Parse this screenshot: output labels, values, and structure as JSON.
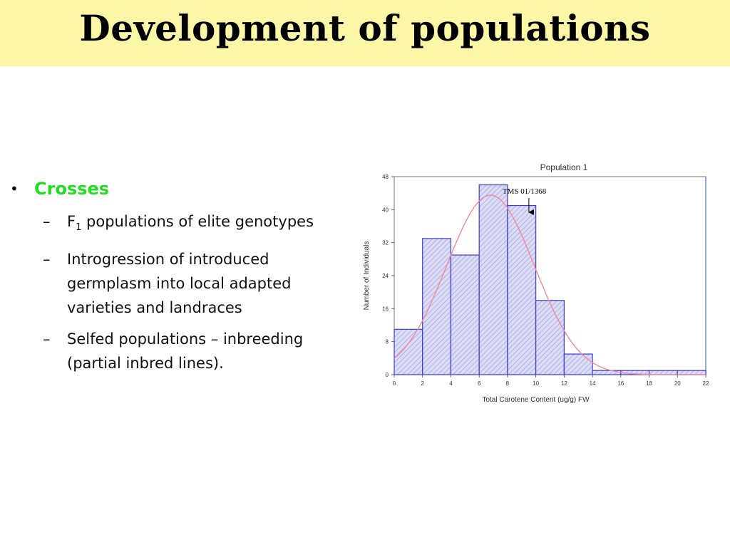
{
  "slide": {
    "title": "Development of populations",
    "bullet": "Crosses",
    "sub_bullets": [
      {
        "pre": "F",
        "sub": "1",
        "post": " populations of elite genotypes"
      },
      {
        "pre": "Introgression of introduced germplasm into local adapted varieties and landraces",
        "sub": "",
        "post": ""
      },
      {
        "pre": "Selfed populations – inbreeding (partial inbred lines).",
        "sub": "",
        "post": ""
      }
    ],
    "bullet_symbol": "•",
    "dash_symbol": "–"
  },
  "chart_data": {
    "type": "bar",
    "title": "Population 1",
    "xlabel": "Total Carotene Content (ug/g) FW",
    "ylabel": "Number of Individuals",
    "bin_edges": [
      0,
      2,
      4,
      6,
      8,
      10,
      12,
      14,
      16,
      18,
      20,
      22
    ],
    "values": [
      11,
      33,
      29,
      46,
      41,
      18,
      5,
      1,
      1,
      1,
      1
    ],
    "xlim": [
      0,
      22
    ],
    "ylim": [
      0,
      48
    ],
    "x_ticks": [
      0,
      2,
      4,
      6,
      8,
      10,
      12,
      14,
      16,
      18,
      20,
      22
    ],
    "y_ticks": [
      0,
      8,
      16,
      24,
      32,
      40,
      48
    ],
    "x_tick_labels": [
      "0",
      "2",
      "4",
      "6",
      "8",
      "10",
      "12",
      "14",
      "16",
      "18",
      "20",
      "22"
    ],
    "y_tick_labels": [
      "0",
      "8",
      "16",
      "24",
      "32",
      "40",
      "48"
    ],
    "normal_curve": {
      "mean": 6.8,
      "sd": 3.1,
      "peak": 43.5
    },
    "annotation": {
      "text": "TMS 01/1368",
      "x": 8.2
    },
    "bar_color": "#3a3ad6",
    "bar_fill": "#d6d6f4",
    "curve_color": "#f28a9a",
    "grid": false
  }
}
